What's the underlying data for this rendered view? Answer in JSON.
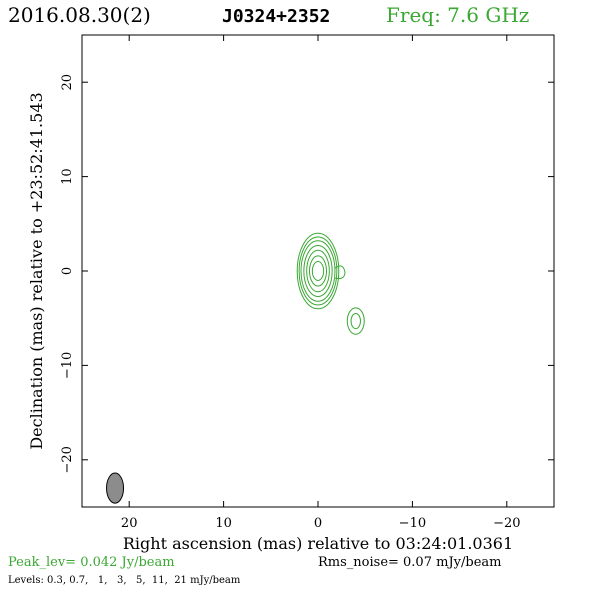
{
  "header": {
    "date": "2016.08.30(2)",
    "source": "J0324+2352",
    "freq": "Freq: 7.6 GHz"
  },
  "footer": {
    "peak": "Peak_lev=  0.042 Jy/beam",
    "rms": "Rms_noise= 0.07 mJy/beam",
    "levels": "Levels: 0.3, 0.7,   1,   3,   5,  11,  21 mJy/beam"
  },
  "chart_data": {
    "type": "contour",
    "xlabel": "Right ascension (mas) relative to 03:24:01.0361",
    "ylabel": "Declination (mas) relative to +23:52:41.543",
    "xlim": [
      25,
      -25
    ],
    "ylim": [
      -25,
      25
    ],
    "xticks": [
      20,
      10,
      0,
      -10,
      -20
    ],
    "yticks": [
      20,
      10,
      0,
      -10,
      -20
    ],
    "xtick_labels": [
      "20",
      "10",
      "0",
      "−10",
      "−20"
    ],
    "ytick_labels": [
      "20",
      "10",
      "0",
      "−10",
      "−20"
    ],
    "contour_levels_mJy": [
      0.3,
      0.7,
      1,
      3,
      5,
      11,
      21
    ],
    "components": [
      {
        "x": 0,
        "y": 0,
        "rx": [
          2.2,
          2.0,
          1.8,
          1.5,
          1.2,
          0.9,
          0.6
        ],
        "ry": [
          4.0,
          3.6,
          3.2,
          2.7,
          2.2,
          1.6,
          1.0
        ]
      },
      {
        "x": -4,
        "y": -5.3,
        "rx": [
          0.9,
          0.5
        ],
        "ry": [
          1.4,
          0.8
        ]
      }
    ],
    "beam": {
      "x": 21.5,
      "y": -23,
      "major_mas": 3.2,
      "minor_mas": 1.8,
      "pa_deg": 0
    },
    "colors": {
      "contour": "#3aa832",
      "beam_fill": "#8c8c8c",
      "text_green": "#3aa832"
    }
  }
}
